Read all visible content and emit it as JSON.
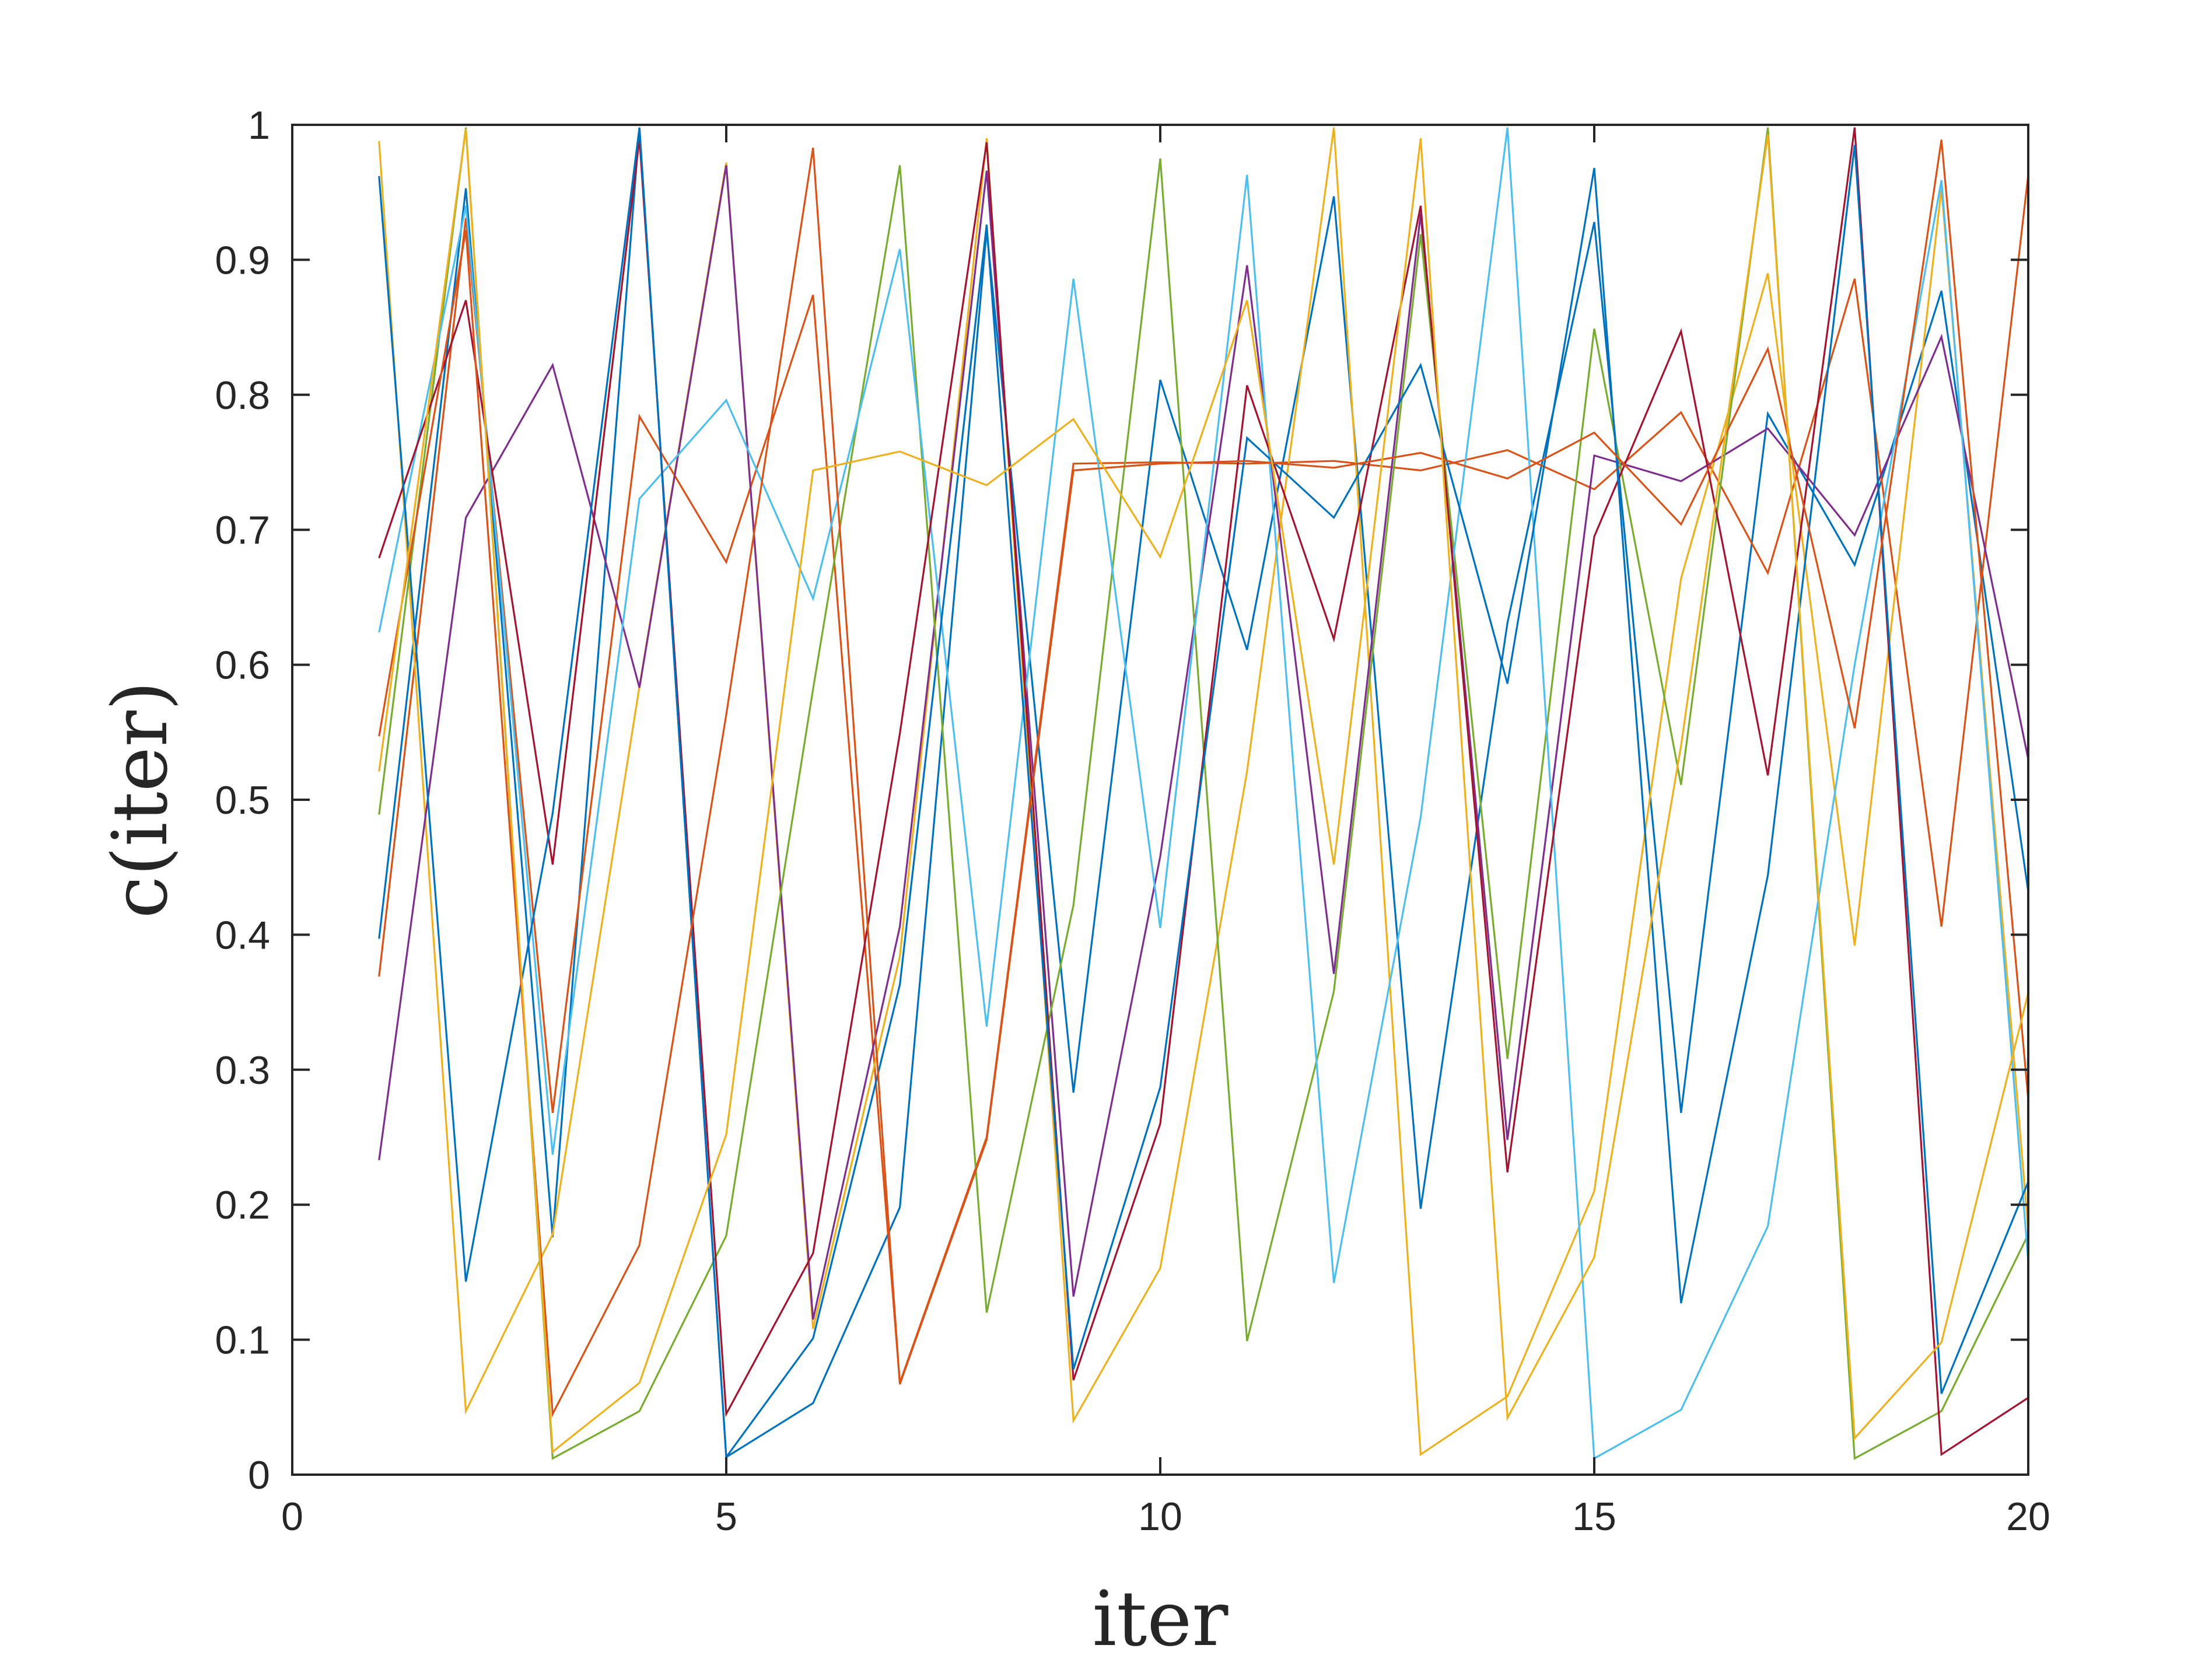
{
  "chart_data": {
    "type": "line",
    "title": "",
    "xlabel": "iter",
    "ylabel": "c(iter)",
    "xlim": [
      0,
      20
    ],
    "ylim": [
      0,
      1
    ],
    "xticks": [
      0,
      5,
      10,
      15,
      20
    ],
    "yticks": [
      0,
      0.1,
      0.2,
      0.3,
      0.4,
      0.5,
      0.6,
      0.7,
      0.8,
      0.9,
      1
    ],
    "xtick_labels": [
      "0",
      "5",
      "10",
      "15",
      "20"
    ],
    "ytick_labels": [
      "0",
      "0.1",
      "0.2",
      "0.3",
      "0.4",
      "0.5",
      "0.6",
      "0.7",
      "0.8",
      "0.9",
      "1"
    ],
    "grid": false,
    "legend": "none",
    "x": [
      1,
      2,
      3,
      4,
      5,
      6,
      7,
      8,
      9,
      10,
      11,
      12,
      13,
      14,
      15,
      16,
      17,
      18,
      19,
      20
    ],
    "series": [
      {
        "color": "#0072BD",
        "values": [
          0.397,
          0.953,
          0.176,
          0.998,
          0.013,
          0.053,
          0.198,
          0.922,
          0.283,
          0.811,
          0.611,
          0.947,
          0.197,
          0.631,
          0.928,
          0.268,
          0.786,
          0.674,
          0.877,
          0.432
        ]
      },
      {
        "color": "#D95319",
        "values": [
          0.369,
          0.931,
          0.268,
          0.784,
          0.676,
          0.874,
          0.068,
          0.25,
          0.749,
          0.75,
          0.749,
          0.751,
          0.744,
          0.759,
          0.73,
          0.787,
          0.668,
          0.886,
          0.406,
          0.963
        ]
      },
      {
        "color": "#EDB120",
        "values": [
          0.988,
          0.047,
          0.178,
          0.584,
          0.972,
          0.108,
          0.384,
          0.99,
          0.04,
          0.153,
          0.521,
          0.998,
          0.015,
          0.058,
          0.21,
          0.664,
          0.89,
          0.392,
          0.953,
          0.181
        ]
      },
      {
        "color": "#7E2F8E",
        "values": [
          0.233,
          0.709,
          0.822,
          0.583,
          0.97,
          0.115,
          0.406,
          0.966,
          0.132,
          0.458,
          0.896,
          0.371,
          0.934,
          0.248,
          0.755,
          0.736,
          0.775,
          0.696,
          0.843,
          0.53
        ]
      },
      {
        "color": "#77AC30",
        "values": [
          0.489,
          0.998,
          0.012,
          0.047,
          0.177,
          0.582,
          0.97,
          0.12,
          0.422,
          0.975,
          0.099,
          0.358,
          0.919,
          0.308,
          0.849,
          0.511,
          0.998,
          0.012,
          0.047,
          0.178
        ]
      },
      {
        "color": "#4DBEEE",
        "values": [
          0.624,
          0.94,
          0.237,
          0.723,
          0.796,
          0.649,
          0.908,
          0.332,
          0.886,
          0.405,
          0.963,
          0.142,
          0.487,
          0.998,
          0.012,
          0.048,
          0.184,
          0.6,
          0.959,
          0.158
        ]
      },
      {
        "color": "#A2142F",
        "values": [
          0.679,
          0.87,
          0.452,
          0.99,
          0.045,
          0.164,
          0.549,
          0.987,
          0.07,
          0.26,
          0.807,
          0.619,
          0.94,
          0.224,
          0.695,
          0.847,
          0.518,
          0.998,
          0.015,
          0.057
        ]
      },
      {
        "color": "#0072BD",
        "values": [
          0.962,
          0.143,
          0.49,
          0.998,
          0.013,
          0.101,
          0.363,
          0.926,
          0.078,
          0.287,
          0.768,
          0.709,
          0.822,
          0.586,
          0.968,
          0.127,
          0.444,
          0.985,
          0.06,
          0.217
        ]
      },
      {
        "color": "#D95319",
        "values": [
          0.547,
          0.922,
          0.045,
          0.17,
          0.563,
          0.983,
          0.067,
          0.248,
          0.744,
          0.749,
          0.751,
          0.746,
          0.757,
          0.738,
          0.772,
          0.704,
          0.834,
          0.553,
          0.989,
          0.278
        ]
      },
      {
        "color": "#EDB120",
        "values": [
          0.521,
          0.997,
          0.017,
          0.068,
          0.252,
          0.744,
          0.758,
          0.733,
          0.782,
          0.68,
          0.87,
          0.452,
          0.99,
          0.042,
          0.161,
          0.54,
          0.993,
          0.027,
          0.098,
          0.357
        ]
      }
    ]
  }
}
